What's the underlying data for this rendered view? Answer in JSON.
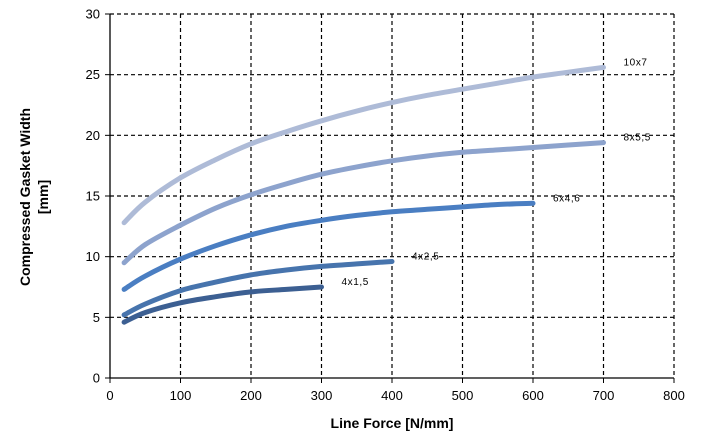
{
  "chart_data": {
    "type": "line",
    "xlabel": "Line Force [N/mm]",
    "ylabel_line1": "Compressed Gasket Width",
    "ylabel_line2": "[mm]",
    "xlim": [
      0,
      800
    ],
    "ylim": [
      0,
      30
    ],
    "x_ticks": [
      "0",
      "100",
      "200",
      "300",
      "400",
      "500",
      "600",
      "700",
      "800"
    ],
    "y_ticks": [
      "0",
      "5",
      "10",
      "15",
      "20",
      "25",
      "30"
    ],
    "grid": true,
    "grid_style": "dashed",
    "legend": "none (labels at line ends)",
    "series": [
      {
        "name": "10x7",
        "color": "#aebbd7",
        "x": [
          20,
          50,
          100,
          150,
          200,
          250,
          300,
          350,
          400,
          450,
          500,
          550,
          600,
          650,
          700
        ],
        "y": [
          12.8,
          14.5,
          16.5,
          18.0,
          19.3,
          20.3,
          21.2,
          22.0,
          22.7,
          23.3,
          23.8,
          24.3,
          24.8,
          25.2,
          25.6
        ]
      },
      {
        "name": "8x5,5",
        "color": "#8da3cd",
        "x": [
          20,
          50,
          100,
          150,
          200,
          250,
          300,
          350,
          400,
          450,
          500,
          550,
          600,
          650,
          700
        ],
        "y": [
          9.5,
          11.0,
          12.6,
          14.0,
          15.1,
          16.0,
          16.8,
          17.4,
          17.9,
          18.3,
          18.6,
          18.8,
          19.0,
          19.2,
          19.4
        ]
      },
      {
        "name": "6x4,6",
        "color": "#4a7ec2",
        "x": [
          20,
          50,
          100,
          150,
          200,
          250,
          300,
          350,
          400,
          450,
          500,
          550,
          600
        ],
        "y": [
          7.3,
          8.4,
          9.8,
          10.9,
          11.8,
          12.5,
          13.0,
          13.4,
          13.7,
          13.9,
          14.1,
          14.3,
          14.4
        ]
      },
      {
        "name": "4x2,5",
        "color": "#4774ad",
        "x": [
          20,
          50,
          100,
          150,
          200,
          250,
          300,
          350,
          400
        ],
        "y": [
          5.2,
          6.1,
          7.2,
          7.9,
          8.5,
          8.9,
          9.2,
          9.4,
          9.6
        ]
      },
      {
        "name": "4x1,5",
        "color": "#3c5f92",
        "x": [
          20,
          50,
          100,
          150,
          200,
          250,
          300
        ],
        "y": [
          4.6,
          5.4,
          6.2,
          6.7,
          7.1,
          7.3,
          7.5
        ]
      }
    ]
  }
}
